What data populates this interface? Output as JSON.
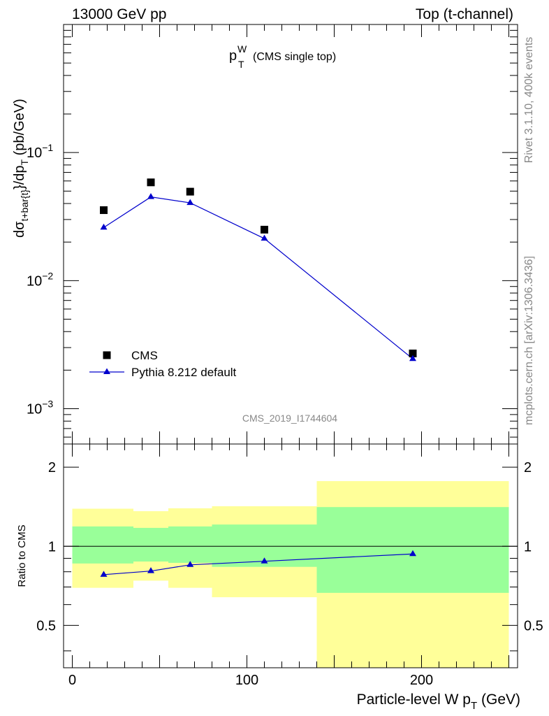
{
  "header": {
    "left": "13000 GeV pp",
    "right": "Top (t-channel)"
  },
  "plot_title": {
    "main": "p",
    "sup": "W",
    "sub": "T",
    "detail": "(CMS single top)"
  },
  "side_labels": {
    "rivet": "Rivet 3.1.10,  400k events",
    "mcplots": "mcplots.cern.ch [arXiv:1306.3436]"
  },
  "watermark": "CMS_2019_I1744604",
  "legend": {
    "data_label": "CMS",
    "mc_label": "Pythia 8.212 default"
  },
  "axes": {
    "main_ylabel_parts": [
      "dσ",
      "t+bar{t}",
      "}/dp",
      "T",
      "   (pb/GeV)"
    ],
    "ratio_ylabel": "Ratio to CMS",
    "xlabel_parts": [
      "Particle-level W p",
      "T",
      " (GeV)"
    ],
    "main_ytick_labels": [
      {
        "base": "10",
        "exp": "−1",
        "value": 0.1
      },
      {
        "base": "10",
        "exp": "−2",
        "value": 0.01
      },
      {
        "base": "10",
        "exp": "−3",
        "value": 0.001
      }
    ],
    "ratio_ytick_labels": [
      "2",
      "1",
      "0.5"
    ],
    "xtick_labels": [
      "0",
      "100",
      "200"
    ]
  },
  "colors": {
    "mc": "#0000cc",
    "band_inner": "#99ff99",
    "band_outer": "#ffff99",
    "data": "#000000"
  },
  "chart_data": [
    {
      "type": "scatter",
      "panel": "main",
      "xlabel": "Particle-level W p_T (GeV)",
      "ylabel": "dσ_{t+bar{t}}/dp_T (pb/GeV)",
      "yscale": "log",
      "xlim": [
        -5,
        255
      ],
      "ylim": [
        0.00053,
        1.0
      ],
      "series": [
        {
          "name": "CMS",
          "marker": "square",
          "x": [
            18,
            45,
            67.5,
            110,
            195
          ],
          "y": [
            0.0355,
            0.0585,
            0.0495,
            0.025,
            0.0027
          ]
        },
        {
          "name": "Pythia 8.212 default",
          "marker": "triangle",
          "line": true,
          "x": [
            18,
            45,
            67.5,
            110,
            195
          ],
          "y": [
            0.026,
            0.045,
            0.0405,
            0.0213,
            0.00245
          ]
        }
      ]
    },
    {
      "type": "line",
      "panel": "ratio",
      "ylabel": "Ratio to CMS",
      "yscale": "log",
      "xlim": [
        -5,
        255
      ],
      "ylim": [
        0.345,
        2.45
      ],
      "bins": [
        {
          "x0": 0,
          "x1": 35,
          "inner": [
            0.86,
            1.19
          ],
          "outer": [
            0.695,
            1.39
          ]
        },
        {
          "x0": 35,
          "x1": 55,
          "inner": [
            0.875,
            1.175
          ],
          "outer": [
            0.74,
            1.36
          ]
        },
        {
          "x0": 55,
          "x1": 80,
          "inner": [
            0.865,
            1.19
          ],
          "outer": [
            0.695,
            1.395
          ]
        },
        {
          "x0": 80,
          "x1": 140,
          "inner": [
            0.835,
            1.21
          ],
          "outer": [
            0.64,
            1.42
          ]
        },
        {
          "x0": 140,
          "x1": 250,
          "inner": [
            0.665,
            1.41
          ],
          "outer": [
            0.345,
            1.77
          ]
        }
      ],
      "series": [
        {
          "name": "Pythia 8.212 default",
          "x": [
            18,
            45,
            67.5,
            110,
            195
          ],
          "y": [
            0.78,
            0.805,
            0.85,
            0.877,
            0.935
          ]
        }
      ]
    }
  ]
}
